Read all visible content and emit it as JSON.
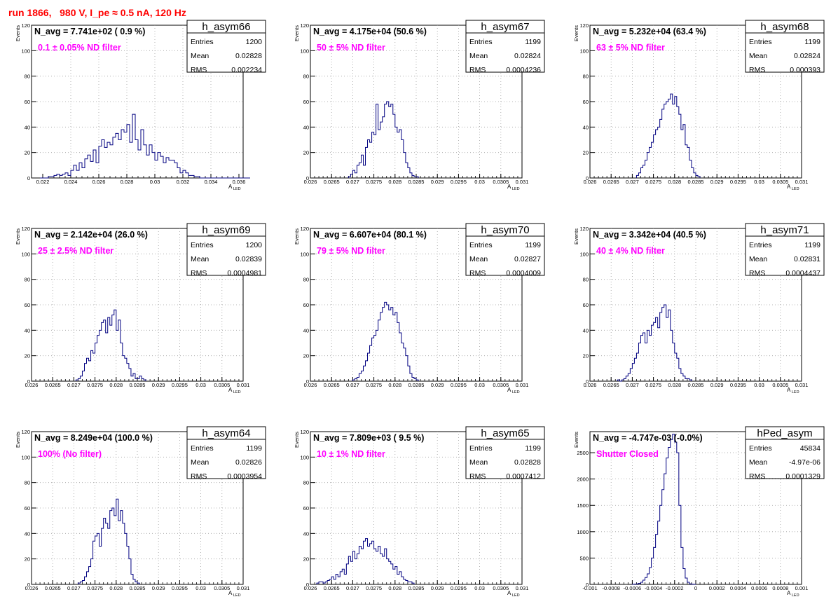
{
  "page": {
    "title": "run 1866,   980 V, I_pe ≈ 0.5 nA, 120 Hz"
  },
  "colors": {
    "histogram": "#000080",
    "annotation": "#ff00ff",
    "title": "#ff0000",
    "grid": "#a0a0a0"
  },
  "chart_data": [
    {
      "type": "bar",
      "name": "h_asym66",
      "navg": "N_avg = 7.741e+02 ( 0.9 %)",
      "note": "0.1 ± 0.05% ND filter",
      "stats": {
        "Entries": "1200",
        "Mean": "0.02828",
        "RMS": "0.002234"
      },
      "ylabel": "Events",
      "xlabel": "A",
      "xlabel_sub": "LED",
      "xlim": [
        0.0212,
        0.0363
      ],
      "ylim": [
        0,
        120
      ],
      "xticks": [
        0.022,
        0.024,
        0.026,
        0.028,
        0.03,
        0.032,
        0.034,
        0.036
      ],
      "xtick_labels": [
        "0.022",
        "0.024",
        "0.026",
        "0.028",
        "0.03",
        "0.032",
        "0.034",
        "0.036"
      ],
      "yticks": [
        0,
        20,
        40,
        60,
        80,
        100,
        120
      ],
      "x_start": 0.0218,
      "bin_width": 0.0002,
      "values": [
        0,
        0,
        0,
        1,
        1,
        2,
        3,
        2,
        3,
        4,
        2,
        6,
        10,
        6,
        12,
        8,
        15,
        18,
        13,
        22,
        12,
        25,
        30,
        24,
        28,
        26,
        32,
        35,
        30,
        38,
        36,
        42,
        28,
        50,
        30,
        22,
        38,
        26,
        18,
        26,
        20,
        14,
        20,
        17,
        12,
        16,
        14,
        14,
        12,
        8,
        4,
        6,
        4,
        2,
        2,
        1,
        1,
        0,
        0,
        0,
        0,
        0,
        0,
        0,
        0,
        0,
        0,
        0,
        0,
        0,
        0,
        0,
        0,
        0,
        0
      ]
    },
    {
      "type": "bar",
      "name": "h_asym67",
      "navg": "N_avg = 4.175e+04 (50.6 %)",
      "note": "50 ± 5% ND filter",
      "stats": {
        "Entries": "1199",
        "Mean": "0.02824",
        "RMS": "0.0004236"
      },
      "ylabel": "Events",
      "xlabel": "A",
      "xlabel_sub": "LED",
      "xlim": [
        0.026,
        0.031
      ],
      "ylim": [
        0,
        120
      ],
      "xticks": [
        0.026,
        0.0265,
        0.027,
        0.0275,
        0.028,
        0.0285,
        0.029,
        0.0295,
        0.03,
        0.0305,
        0.031
      ],
      "xtick_labels": [
        "0.026",
        "0.0265",
        "0.027",
        "0.0275",
        "0.028",
        "0.0285",
        "0.029",
        "0.0295",
        "0.03",
        "0.0305",
        "0.031"
      ],
      "yticks": [
        0,
        20,
        40,
        60,
        80,
        100,
        120
      ],
      "x_start": 0.0269,
      "bin_width": 5e-05,
      "values": [
        1,
        3,
        6,
        4,
        10,
        12,
        18,
        10,
        24,
        30,
        28,
        36,
        34,
        58,
        38,
        44,
        48,
        58,
        60,
        56,
        58,
        50,
        40,
        36,
        38,
        30,
        20,
        12,
        8,
        4,
        2,
        1,
        1
      ]
    },
    {
      "type": "bar",
      "name": "h_asym68",
      "navg": "N_avg = 5.232e+04 (63.4 %)",
      "note": "63 ± 5% ND filter",
      "stats": {
        "Entries": "1199",
        "Mean": "0.02824",
        "RMS": "0.000393"
      },
      "ylabel": "Events",
      "xlabel": "A",
      "xlabel_sub": "LED",
      "xlim": [
        0.026,
        0.031
      ],
      "ylim": [
        0,
        120
      ],
      "xticks": [
        0.026,
        0.0265,
        0.027,
        0.0275,
        0.028,
        0.0285,
        0.029,
        0.0295,
        0.03,
        0.0305,
        0.031
      ],
      "xtick_labels": [
        "0.026",
        "0.0265",
        "0.027",
        "0.0275",
        "0.028",
        "0.0285",
        "0.029",
        "0.0295",
        "0.03",
        "0.0305",
        "0.031"
      ],
      "yticks": [
        0,
        20,
        40,
        60,
        80,
        100,
        120
      ],
      "x_start": 0.0271,
      "bin_width": 5e-05,
      "values": [
        2,
        4,
        8,
        10,
        14,
        20,
        24,
        28,
        34,
        38,
        40,
        46,
        54,
        58,
        60,
        62,
        66,
        58,
        64,
        56,
        50,
        38,
        42,
        26,
        24,
        14,
        8,
        4,
        2,
        1
      ]
    },
    {
      "type": "bar",
      "name": "h_asym69",
      "navg": "N_avg = 2.142e+04 (26.0 %)",
      "note": "25 ± 2.5% ND filter",
      "stats": {
        "Entries": "1200",
        "Mean": "0.02839",
        "RMS": "0.0004981"
      },
      "ylabel": "Events",
      "xlabel": "A",
      "xlabel_sub": "LED",
      "xlim": [
        0.026,
        0.031
      ],
      "ylim": [
        0,
        120
      ],
      "xticks": [
        0.026,
        0.0265,
        0.027,
        0.0275,
        0.028,
        0.0285,
        0.029,
        0.0295,
        0.03,
        0.0305,
        0.031
      ],
      "xtick_labels": [
        "0.026",
        "0.0265",
        "0.027",
        "0.0275",
        "0.028",
        "0.0285",
        "0.029",
        "0.0295",
        "0.03",
        "0.0305",
        "0.031"
      ],
      "yticks": [
        0,
        20,
        40,
        60,
        80,
        100,
        120
      ],
      "x_start": 0.02705,
      "bin_width": 5e-05,
      "values": [
        1,
        2,
        4,
        8,
        14,
        18,
        16,
        24,
        22,
        30,
        36,
        40,
        46,
        48,
        38,
        50,
        44,
        52,
        56,
        40,
        48,
        30,
        20,
        18,
        14,
        10,
        4,
        6,
        2,
        2,
        4,
        2,
        1
      ]
    },
    {
      "type": "bar",
      "name": "h_asym70",
      "navg": "N_avg = 6.607e+04 (80.1 %)",
      "note": "79 ± 5% ND filter",
      "stats": {
        "Entries": "1199",
        "Mean": "0.02827",
        "RMS": "0.0004009"
      },
      "ylabel": "Events",
      "xlabel": "A",
      "xlabel_sub": "LED",
      "xlim": [
        0.026,
        0.031
      ],
      "ylim": [
        0,
        120
      ],
      "xticks": [
        0.026,
        0.0265,
        0.027,
        0.0275,
        0.028,
        0.0285,
        0.029,
        0.0295,
        0.03,
        0.0305,
        0.031
      ],
      "xtick_labels": [
        "0.026",
        "0.0265",
        "0.027",
        "0.0275",
        "0.028",
        "0.0285",
        "0.029",
        "0.0295",
        "0.03",
        "0.0305",
        "0.031"
      ],
      "yticks": [
        0,
        20,
        40,
        60,
        80,
        100,
        120
      ],
      "x_start": 0.027,
      "bin_width": 5e-05,
      "values": [
        1,
        2,
        3,
        6,
        8,
        12,
        16,
        22,
        28,
        34,
        36,
        40,
        48,
        54,
        58,
        62,
        60,
        56,
        58,
        52,
        54,
        46,
        38,
        30,
        26,
        20,
        12,
        6,
        3,
        2,
        1
      ]
    },
    {
      "type": "bar",
      "name": "h_asym71",
      "navg": "N_avg = 3.342e+04 (40.5 %)",
      "note": "40 ± 4% ND filter",
      "stats": {
        "Entries": "1199",
        "Mean": "0.02831",
        "RMS": "0.0004437"
      },
      "ylabel": "Events",
      "xlabel": "A",
      "xlabel_sub": "LED",
      "xlim": [
        0.026,
        0.031
      ],
      "ylim": [
        0,
        120
      ],
      "xticks": [
        0.026,
        0.0265,
        0.027,
        0.0275,
        0.028,
        0.0285,
        0.029,
        0.0295,
        0.03,
        0.0305,
        0.031
      ],
      "xtick_labels": [
        "0.026",
        "0.0265",
        "0.027",
        "0.0275",
        "0.028",
        "0.0285",
        "0.029",
        "0.0295",
        "0.03",
        "0.0305",
        "0.031"
      ],
      "yticks": [
        0,
        20,
        40,
        60,
        80,
        100,
        120
      ],
      "x_start": 0.02665,
      "bin_width": 5e-05,
      "values": [
        1,
        0,
        1,
        2,
        4,
        6,
        10,
        14,
        18,
        22,
        30,
        36,
        38,
        30,
        40,
        36,
        44,
        46,
        50,
        42,
        54,
        58,
        60,
        50,
        56,
        40,
        30,
        22,
        18,
        10,
        6,
        4,
        2,
        2,
        1
      ]
    },
    {
      "type": "bar",
      "name": "h_asym64",
      "navg": "N_avg = 8.249e+04 (100.0 %)",
      "note": "100% (No filter)",
      "stats": {
        "Entries": "1199",
        "Mean": "0.02826",
        "RMS": "0.0003954"
      },
      "ylabel": "Events",
      "xlabel": "A",
      "xlabel_sub": "LED",
      "xlim": [
        0.026,
        0.031
      ],
      "ylim": [
        0,
        120
      ],
      "xticks": [
        0.026,
        0.0265,
        0.027,
        0.0275,
        0.028,
        0.0285,
        0.029,
        0.0295,
        0.03,
        0.0305,
        0.031
      ],
      "xtick_labels": [
        "0.026",
        "0.0265",
        "0.027",
        "0.0275",
        "0.028",
        "0.0285",
        "0.029",
        "0.0295",
        "0.03",
        "0.0305",
        "0.031"
      ],
      "yticks": [
        0,
        20,
        40,
        60,
        80,
        100,
        120
      ],
      "x_start": 0.0271,
      "bin_width": 5e-05,
      "values": [
        1,
        2,
        3,
        6,
        10,
        14,
        20,
        34,
        38,
        40,
        30,
        44,
        52,
        48,
        44,
        58,
        60,
        54,
        67,
        50,
        58,
        48,
        40,
        30,
        20,
        8,
        4,
        2,
        1
      ]
    },
    {
      "type": "bar",
      "name": "h_asym65",
      "navg": "N_avg = 7.809e+03 ( 9.5 %)",
      "note": "10 ± 1% ND filter",
      "stats": {
        "Entries": "1199",
        "Mean": "0.02828",
        "RMS": "0.0007412"
      },
      "ylabel": "Events",
      "xlabel": "A",
      "xlabel_sub": "LED",
      "xlim": [
        0.026,
        0.031
      ],
      "ylim": [
        0,
        120
      ],
      "xticks": [
        0.026,
        0.0265,
        0.027,
        0.0275,
        0.028,
        0.0285,
        0.029,
        0.0295,
        0.03,
        0.0305,
        0.031
      ],
      "xtick_labels": [
        "0.026",
        "0.0265",
        "0.027",
        "0.0275",
        "0.028",
        "0.0285",
        "0.029",
        "0.0295",
        "0.03",
        "0.0305",
        "0.031"
      ],
      "yticks": [
        0,
        20,
        40,
        60,
        80,
        100,
        120
      ],
      "x_start": 0.02615,
      "bin_width": 5e-05,
      "values": [
        1,
        2,
        2,
        1,
        2,
        3,
        4,
        6,
        4,
        8,
        6,
        10,
        12,
        8,
        16,
        22,
        18,
        26,
        20,
        24,
        30,
        28,
        34,
        36,
        30,
        32,
        34,
        28,
        26,
        30,
        24,
        22,
        28,
        20,
        18,
        16,
        12,
        14,
        8,
        10,
        6,
        4,
        3,
        2,
        2,
        1
      ]
    },
    {
      "type": "bar",
      "name": "hPed_asym",
      "navg": "N_avg = -4.747e-03 (-0.0%)",
      "note": "Shutter Closed",
      "stats": {
        "Entries": "45834",
        "Mean": "-4.97e-06",
        "RMS": "0.0001329"
      },
      "ylabel": "Events",
      "xlabel": "A",
      "xlabel_sub": "LED",
      "xlim": [
        -0.001,
        0.001
      ],
      "ylim": [
        0,
        2900
      ],
      "xticks": [
        -0.001,
        -0.0008,
        -0.0006,
        -0.0004,
        -0.0002,
        0,
        0.0002,
        0.0004,
        0.0006,
        0.0008,
        0.001
      ],
      "xtick_labels": [
        "-0.001",
        "-0.0008",
        "-0.0006",
        "-0.0004",
        "-0.0002",
        "0",
        "0.0002",
        "0.0004",
        "0.0006",
        "0.0008",
        "0.001"
      ],
      "yticks": [
        0,
        500,
        1000,
        1500,
        2000,
        2500
      ],
      "x_start": -0.0006,
      "bin_width": 2e-05,
      "values": [
        2,
        5,
        10,
        20,
        40,
        80,
        130,
        200,
        320,
        500,
        700,
        950,
        1200,
        1500,
        1800,
        2100,
        2400,
        2600,
        2750,
        2850,
        2700,
        2500,
        1500,
        700,
        300,
        120,
        40,
        10,
        4,
        2
      ]
    }
  ]
}
